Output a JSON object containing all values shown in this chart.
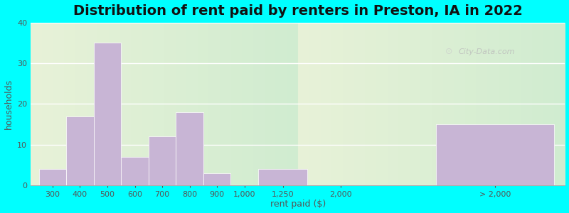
{
  "title": "Distribution of rent paid by renters in Preston, IA in 2022",
  "xlabel": "rent paid ($)",
  "ylabel": "households",
  "background_color": "#00FFFF",
  "bar_color": "#c8b5d5",
  "ylim": [
    0,
    40
  ],
  "yticks": [
    0,
    10,
    20,
    30,
    40
  ],
  "categories": [
    "300",
    "400",
    "500",
    "600",
    "700",
    "800",
    "900",
    "1,000",
    "1,250",
    "2,000",
    "> 2,000"
  ],
  "values": [
    4,
    17,
    35,
    7,
    12,
    18,
    3,
    0,
    4,
    0,
    15
  ],
  "title_fontsize": 14,
  "axis_label_fontsize": 9,
  "tick_fontsize": 8,
  "watermark_text": "City-Data.com"
}
